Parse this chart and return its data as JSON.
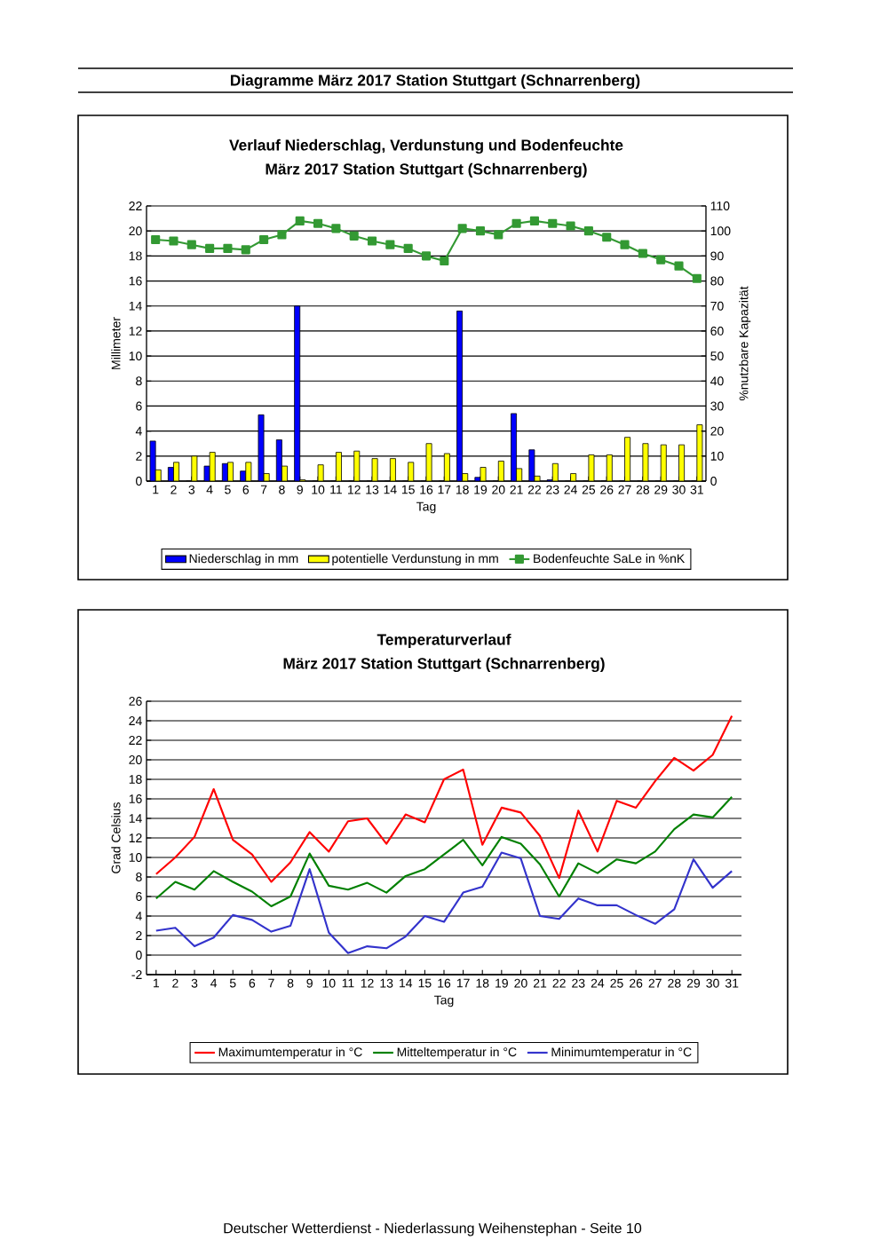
{
  "chart_data": [
    {
      "type": "bar",
      "title": "Verlauf Niederschlag, Verdunstung und Bodenfeuchte",
      "subtitle": "März 2017 Station Stuttgart (Schnarrenberg)",
      "xlabel": "Tag",
      "ylabel": "Millimeter",
      "y2label": "%nutzbare Kapazität",
      "categories": [
        "1",
        "2",
        "3",
        "4",
        "5",
        "6",
        "7",
        "8",
        "9",
        "10",
        "11",
        "12",
        "13",
        "14",
        "15",
        "16",
        "17",
        "18",
        "19",
        "20",
        "21",
        "22",
        "23",
        "24",
        "25",
        "26",
        "27",
        "28",
        "29",
        "30",
        "31"
      ],
      "series": [
        {
          "name": "Niederschlag in mm",
          "color": "#0000ff",
          "values": [
            3.2,
            1.1,
            0,
            1.2,
            1.4,
            0.8,
            5.3,
            3.3,
            14.0,
            0,
            0,
            0,
            0,
            0,
            0,
            0,
            0,
            13.6,
            0.3,
            0,
            5.4,
            2.5,
            0.1,
            0,
            0,
            0,
            0,
            0,
            0,
            0,
            0
          ]
        },
        {
          "name": "potentielle Verdunstung in mm",
          "color": "#ffff00",
          "values": [
            0.9,
            1.5,
            2.0,
            2.3,
            1.5,
            1.5,
            0.6,
            1.2,
            0.1,
            1.3,
            2.3,
            2.4,
            1.8,
            1.8,
            1.5,
            3.0,
            2.2,
            0.6,
            1.1,
            1.6,
            1.0,
            0.4,
            1.4,
            0.6,
            2.1,
            2.1,
            3.5,
            3.0,
            2.9,
            2.9,
            4.5
          ]
        },
        {
          "name": "Bodenfeuchte SaLe in %nK",
          "color": "#339933",
          "type": "line",
          "axis": "y2",
          "marker": "square",
          "values": [
            96.5,
            96,
            94.5,
            93,
            93,
            92.5,
            96.5,
            98.5,
            104,
            103,
            101,
            98,
            96,
            94.5,
            93,
            90,
            88,
            101,
            100,
            98.5,
            103,
            104,
            103,
            102,
            100,
            97.5,
            94.5,
            91,
            88.5,
            86,
            81
          ]
        }
      ],
      "ylim": [
        0,
        22
      ],
      "yticks": [
        0,
        2,
        4,
        6,
        8,
        10,
        12,
        14,
        16,
        18,
        20,
        22
      ],
      "y2lim": [
        0,
        110
      ],
      "y2ticks": [
        0,
        10,
        20,
        30,
        40,
        50,
        60,
        70,
        80,
        90,
        100,
        110
      ],
      "grid": "y",
      "legend": "bottom",
      "annotations": [
        "Diagramme März 2017 Station Stuttgart (Schnarrenberg)"
      ]
    },
    {
      "type": "line",
      "title": "Temperaturverlauf",
      "subtitle": "März 2017 Station Stuttgart (Schnarrenberg)",
      "xlabel": "Tag",
      "ylabel": "Grad Celsius",
      "categories": [
        "1",
        "2",
        "3",
        "4",
        "5",
        "6",
        "7",
        "8",
        "9",
        "10",
        "11",
        "12",
        "13",
        "14",
        "15",
        "16",
        "17",
        "18",
        "19",
        "20",
        "21",
        "22",
        "23",
        "24",
        "25",
        "26",
        "27",
        "28",
        "29",
        "30",
        "31"
      ],
      "series": [
        {
          "name": "Maximumtemperatur in °C",
          "color": "#ff0000",
          "values": [
            8.3,
            10,
            12.1,
            17,
            11.8,
            10.3,
            7.5,
            9.5,
            12.6,
            10.6,
            13.7,
            14,
            11.4,
            14.4,
            13.6,
            18,
            19,
            11.3,
            15.1,
            14.6,
            12.2,
            7.9,
            14.8,
            10.6,
            15.8,
            15.1,
            17.8,
            20.2,
            18.9,
            20.5,
            24.5
          ]
        },
        {
          "name": "Mitteltemperatur in °C",
          "color": "#008000",
          "values": [
            5.8,
            7.5,
            6.7,
            8.6,
            7.5,
            6.5,
            5.0,
            6.0,
            10.4,
            7.1,
            6.7,
            7.4,
            6.4,
            8.1,
            8.8,
            10.3,
            11.8,
            9.2,
            12.1,
            11.4,
            9.3,
            6.0,
            9.4,
            8.4,
            9.8,
            9.4,
            10.6,
            12.9,
            14.4,
            14.1,
            16.2
          ]
        },
        {
          "name": "Minimumtemperatur in °C",
          "color": "#3333cc",
          "values": [
            2.5,
            2.8,
            0.9,
            1.8,
            4.1,
            3.6,
            2.4,
            3.0,
            8.8,
            2.3,
            0.2,
            0.9,
            0.7,
            1.9,
            4.0,
            3.4,
            6.4,
            7.0,
            10.5,
            9.9,
            4.0,
            3.7,
            5.8,
            5.1,
            5.1,
            4.1,
            3.2,
            4.7,
            9.8,
            6.9,
            8.6
          ]
        }
      ],
      "ylim": [
        -2,
        26
      ],
      "yticks": [
        -2,
        0,
        2,
        4,
        6,
        8,
        10,
        12,
        14,
        16,
        18,
        20,
        22,
        24,
        26
      ],
      "grid": "y",
      "legend": "bottom",
      "annotations": [
        "Deutscher Wetterdienst - Niederlassung Weihenstephan - Seite 10"
      ]
    }
  ]
}
